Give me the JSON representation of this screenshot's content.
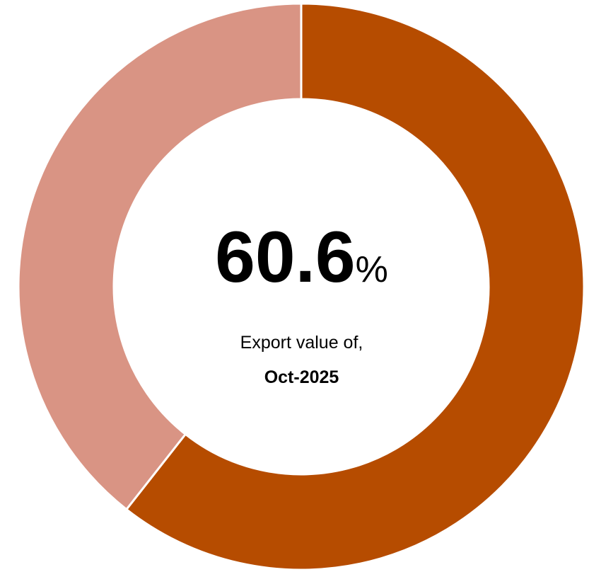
{
  "chart_data": {
    "type": "pie",
    "variant": "donut",
    "slices": [
      {
        "value": 60.6,
        "color": "#B64C00"
      },
      {
        "value": 39.4,
        "color": "#D99484"
      }
    ],
    "center": {
      "value": "60.6",
      "unit": "%",
      "caption": "Export value of,",
      "period": "Oct-2025"
    }
  }
}
